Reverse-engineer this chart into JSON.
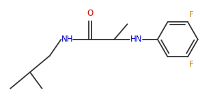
{
  "background_color": "#ffffff",
  "bond_color": "#323232",
  "atom_colors": {
    "O": "#cc0000",
    "N": "#0000cc",
    "F": "#cc8800",
    "C": "#323232"
  },
  "figsize": [
    3.09,
    1.54
  ],
  "dpi": 100,
  "bond_lw": 1.3,
  "inner_lw": 1.3
}
